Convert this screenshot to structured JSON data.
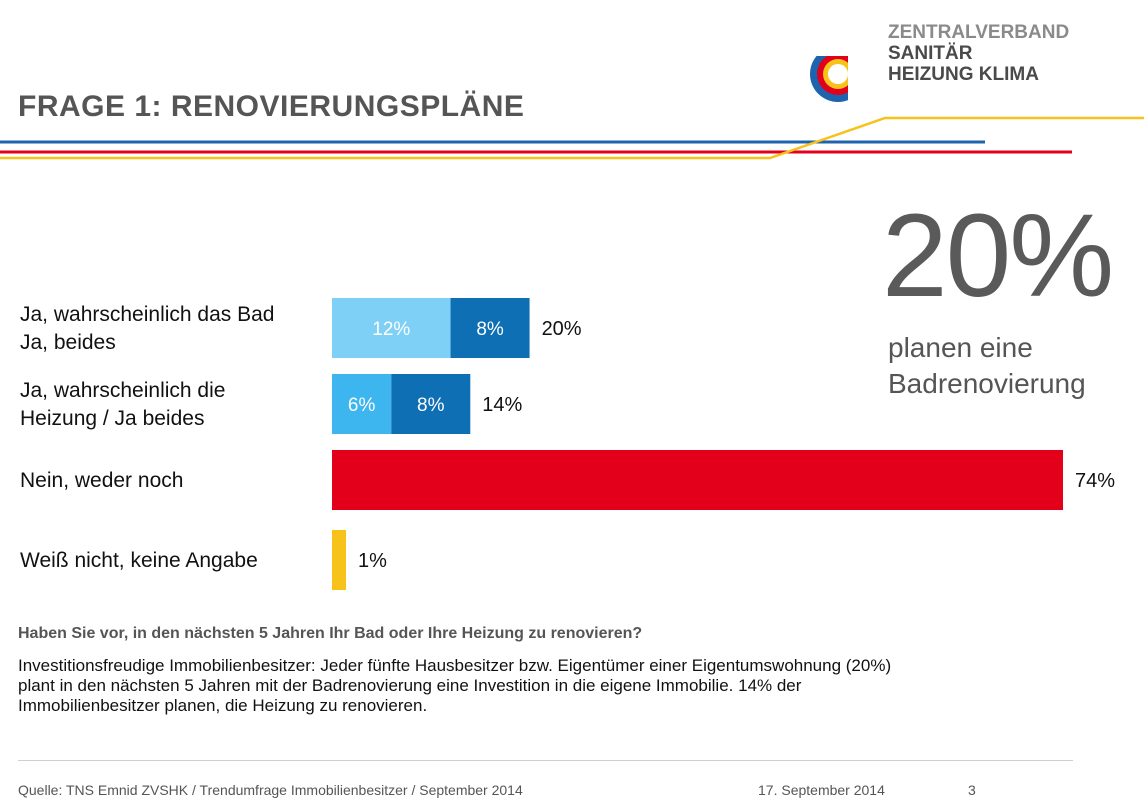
{
  "title": "FRAGE 1: RENOVIERUNGSPLÄNE",
  "logo": {
    "line1": "ZENTRALVERBAND",
    "line2": "SANITÄR",
    "line3": "HEIZUNG KLIMA"
  },
  "highlight": {
    "value": "20%",
    "line1": "planen eine",
    "line2": "Badrenovierung"
  },
  "question": "Haben Sie vor, in den nächsten 5 Jahren Ihr Bad oder Ihre Heizung zu renovieren?",
  "body_lines": [
    "Investitionsfreudige Immobilienbesitzer: Jeder fünfte Hausbesitzer bzw. Eigentümer einer Eigentumswohnung (20%)",
    "plant in den nächsten 5 Jahren mit der Badrenovierung eine Investition in die eigene Immobilie. 14% der",
    "Immobilienbesitzer planen, die Heizung zu renovieren."
  ],
  "footer": {
    "source": "Quelle: TNS Emnid ZVSHK / Trendumfrage Immobilienbesitzer / September 2014",
    "date": "17. September 2014",
    "page": "3"
  },
  "colors": {
    "light_blue": "#7fd0f6",
    "mid_blue": "#3db5ee",
    "dark_blue": "#0f6fb5",
    "red": "#e2001a",
    "yellow": "#f7c21a",
    "grey_text": "#5a5a5a"
  },
  "chart_data": {
    "type": "bar",
    "orientation": "horizontal",
    "stacked": true,
    "categories": [
      [
        "Ja, wahrscheinlich das Bad",
        "Ja, beides"
      ],
      [
        "Ja, wahrscheinlich die",
        "Heizung / Ja beides"
      ],
      [
        "Nein, weder noch"
      ],
      [
        "Weiß nicht, keine Angabe"
      ]
    ],
    "rows": [
      {
        "segments": [
          {
            "value": 12,
            "label": "12%",
            "color": "#7fd0f6"
          },
          {
            "value": 8,
            "label": "8%",
            "color": "#0f6fb5"
          }
        ],
        "total": "20%"
      },
      {
        "segments": [
          {
            "value": 6,
            "label": "6%",
            "color": "#3db5ee"
          },
          {
            "value": 8,
            "label": "8%",
            "color": "#0f6fb5"
          }
        ],
        "total": "14%"
      },
      {
        "segments": [
          {
            "value": 74,
            "label": "",
            "color": "#e2001a"
          }
        ],
        "total": "74%"
      },
      {
        "segments": [
          {
            "value": 1,
            "label": "",
            "color": "#f7c21a"
          }
        ],
        "total": "1%"
      }
    ],
    "xlim": [
      0,
      74
    ],
    "unit": "%"
  }
}
